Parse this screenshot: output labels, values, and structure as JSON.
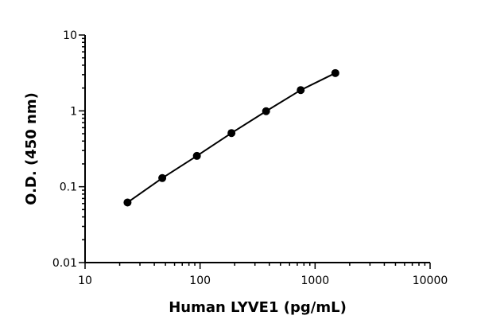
{
  "chart_data": {
    "type": "scatter",
    "title": "",
    "xlabel": "Human LYVE1 (pg/mL)",
    "ylabel": "O.D. (450 nm)",
    "xscale": "log",
    "yscale": "log",
    "xlim": [
      10,
      10000
    ],
    "ylim": [
      0.01,
      10
    ],
    "x_ticks": [
      10,
      100,
      1000,
      10000
    ],
    "x_tick_labels": [
      "10",
      "100",
      "1000",
      "10000"
    ],
    "y_ticks": [
      0.01,
      0.1,
      1,
      10
    ],
    "y_tick_labels": [
      "0.01",
      "0.1",
      "1",
      "10"
    ],
    "grid": false,
    "series": [
      {
        "x": [
          23.4,
          46.9,
          93.8,
          187.5,
          375,
          750,
          1500
        ],
        "y": [
          0.062,
          0.13,
          0.255,
          0.51,
          0.99,
          1.88,
          3.15
        ]
      }
    ],
    "colors": {
      "line": "#000000",
      "points": "#000000"
    }
  }
}
